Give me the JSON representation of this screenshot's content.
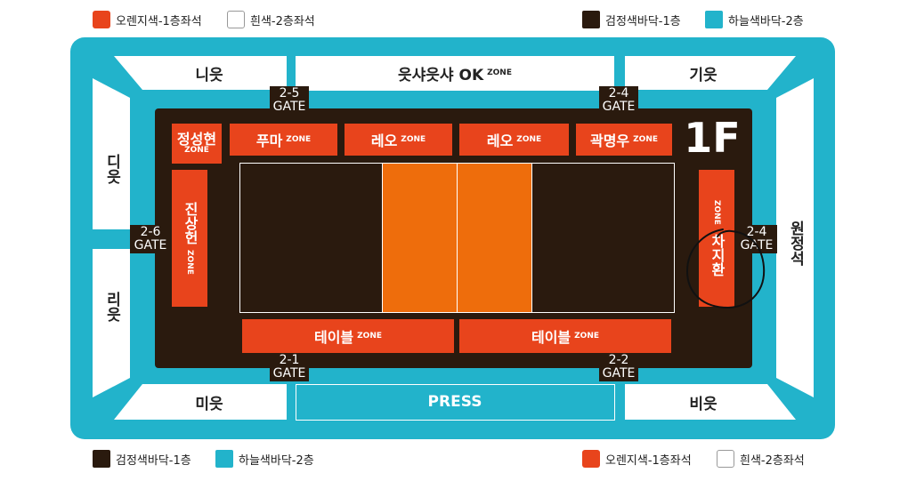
{
  "legend_top": {
    "orange_1f": "오렌지색-1층좌석",
    "white_2f": "흰색-2층좌석",
    "black_1f": "검정색바닥-1층",
    "blue_2f": "하늘색바닥-2층"
  },
  "legend_bottom": {
    "black_1f": "검정색바닥-1층",
    "blue_2f": "하늘색바닥-2층",
    "orange_1f": "오렌지색-1층좌석",
    "white_2f": "흰색-2층좌석"
  },
  "sections": {
    "top_left": "니읏",
    "top_center": "읏샤읏샤 OK",
    "top_center_zone": "ZONE",
    "top_right": "기읏",
    "left_upper": "디읏",
    "left_lower": "리읏",
    "right": "원정석",
    "bottom_left": "미읏",
    "bottom_center": "PRESS",
    "bottom_right": "비읏"
  },
  "floor_label": "1F",
  "gates": {
    "g25": {
      "num": "2-5",
      "word": "GATE"
    },
    "g24_top": {
      "num": "2-4",
      "word": "GATE"
    },
    "g26": {
      "num": "2-6",
      "word": "GATE"
    },
    "g24_right": {
      "num": "2-4",
      "word": "GATE"
    },
    "g21": {
      "num": "2-1",
      "word": "GATE"
    },
    "g22": {
      "num": "2-2",
      "word": "GATE"
    }
  },
  "zones": {
    "jeong": {
      "name": "정성현",
      "zone": "ZONE"
    },
    "puma": {
      "name": "푸마",
      "zone": "ZONE"
    },
    "leo1": {
      "name": "레오",
      "zone": "ZONE"
    },
    "leo2": {
      "name": "레오",
      "zone": "ZONE"
    },
    "kwak": {
      "name": "곽명우",
      "zone": "ZONE"
    },
    "jin": {
      "name": "진상헌",
      "zone": "ZONE"
    },
    "cha": {
      "name": "차지환",
      "zone": "ZONE"
    },
    "table1": {
      "name": "테이블",
      "zone": "ZONE"
    },
    "table2": {
      "name": "테이블",
      "zone": "ZONE"
    }
  },
  "colors": {
    "orange": "#e8441c",
    "court_orange": "#ee6d0c",
    "dark_floor": "#2a1a0e",
    "sky_blue": "#22b3cb",
    "white": "#ffffff"
  }
}
